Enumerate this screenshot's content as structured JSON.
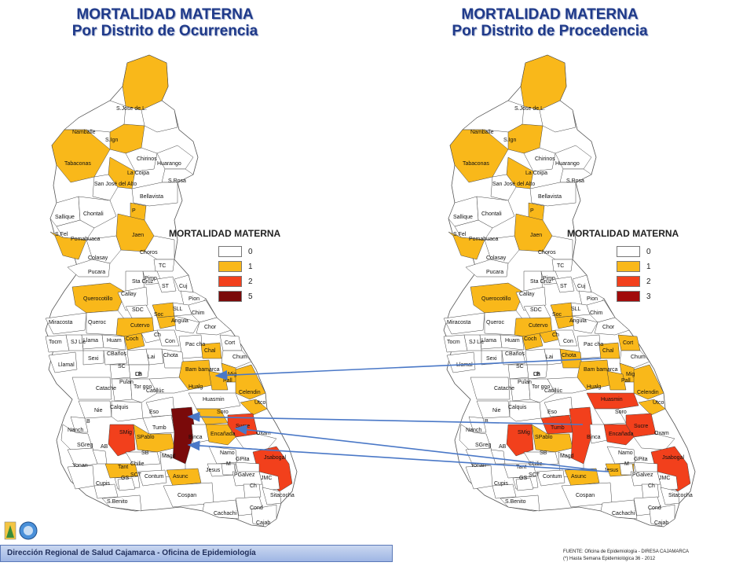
{
  "titles": {
    "left_line1": "MORTALIDAD MATERNA",
    "left_line2": "Por Distrito de Ocurrencia",
    "right_line1": "MORTALIDAD MATERNA",
    "right_line2": "Por Distrito de Procedencia"
  },
  "legend_left": {
    "title": "MORTALIDAD MATERNA",
    "items": [
      {
        "value": "0",
        "color": "#ffffff"
      },
      {
        "value": "1",
        "color": "#f9b81a"
      },
      {
        "value": "2",
        "color": "#f2401c"
      },
      {
        "value": "5",
        "color": "#7a0a0a"
      }
    ]
  },
  "legend_right": {
    "title": "MORTALIDAD MATERNA",
    "items": [
      {
        "value": "0",
        "color": "#ffffff"
      },
      {
        "value": "1",
        "color": "#f9b81a"
      },
      {
        "value": "2",
        "color": "#f2401c"
      },
      {
        "value": "3",
        "color": "#a10b0b"
      }
    ]
  },
  "district_labels": [
    "S.Jose de L.",
    "Namballe",
    "S.Ign",
    "Tabaconas",
    "Chirinos",
    "Huarango",
    "La Coipa",
    "S.Rosa",
    "San José del Alto",
    "Bellavista",
    "Sallique",
    "Chontali",
    "P",
    "S.Fel",
    "Pomahuaca",
    "Jaen",
    "Colasay",
    "Choros",
    "Pucara",
    "TC",
    "Sta Cruz",
    "Pimp",
    "ST",
    "Cuj",
    "Querocotillo",
    "Callay",
    "Pion",
    "SDC",
    "SLL",
    "Chim",
    "Miracosta",
    "Queroc",
    "Cutervo",
    "Soc",
    "Angula",
    "Chor",
    "Tocm",
    "SJ Lic",
    "Llama",
    "Huam",
    "Coch",
    "Ch",
    "Con",
    "Pac cha",
    "Chal",
    "Cort",
    "Llamal",
    "Sexi",
    "CBaños",
    "Lai",
    "Chota",
    "Chum",
    "SC",
    "LB",
    "Bam bamarca",
    "Mig",
    "Pulan",
    "Ch",
    "Pall",
    "Catache",
    "Tor goo",
    "Catillúc",
    "Hualg",
    "Celendin",
    "Nie",
    "Calquis",
    "Huasmin",
    "Utco",
    "Eso",
    "Soro",
    "B",
    "Tumb",
    "Sucre",
    "Nanch",
    "SMig",
    "SPablo",
    "Binca",
    "Encañada",
    "Oxam",
    "SGreg",
    "AB",
    "SB",
    "Namo",
    "Magd",
    "Jsabogal",
    "Yonan",
    "Chilie",
    "GPita",
    "Tant",
    "M",
    "Jesus",
    "Cupis",
    "GS",
    "SCT",
    "Contum",
    "Asunc",
    "PGalvez",
    "JMC",
    "Ch",
    "Cospan",
    "Sitacocha",
    "S.Benito",
    "Cond",
    "Cachachi",
    "Cajab"
  ],
  "footer": {
    "institution": "Dirección Regional de Salud Cajamarca - Oficina de Epidemiología",
    "source_line1": "FUENTE: Oficina de Epidemiología - DIRESA CAJAMARCA",
    "source_line2": "(*) Hasta Semana Epidemiológica 36 - 2012"
  }
}
